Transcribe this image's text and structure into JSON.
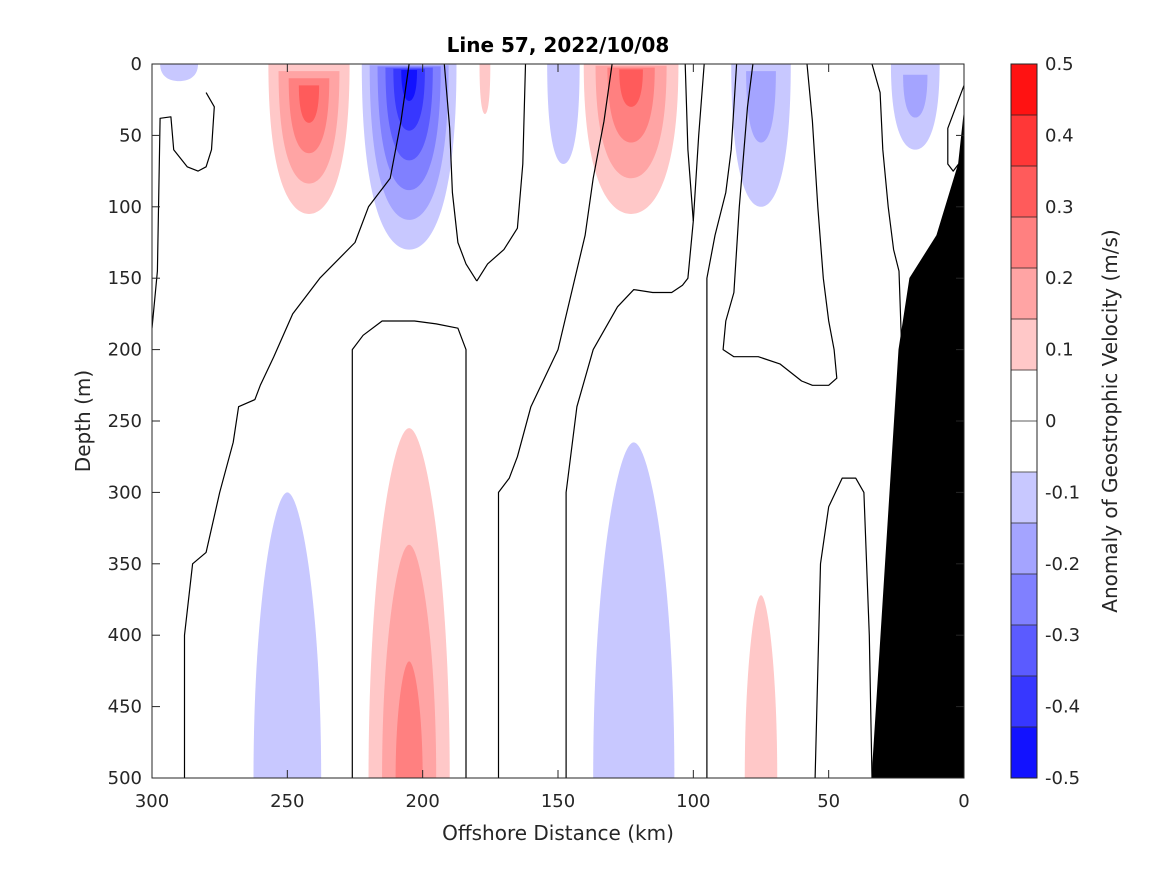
{
  "chart_data": {
    "type": "contour",
    "title": "Line 57, 2022/10/08",
    "xlabel": "Offshore Distance (km)",
    "ylabel": "Depth (m)",
    "colorbar_label": "Anomaly of Geostrophic Velocity (m/s)",
    "xlim": [
      300,
      0
    ],
    "ylim": [
      0,
      500
    ],
    "x_reversed": true,
    "y_reversed": true,
    "x_ticks": [
      300,
      250,
      200,
      150,
      100,
      50,
      0
    ],
    "y_ticks": [
      0,
      50,
      100,
      150,
      200,
      250,
      300,
      350,
      400,
      450,
      500
    ],
    "colorbar_ticks": [
      0.5,
      0.4,
      0.3,
      0.2,
      0.1,
      0,
      -0.1,
      -0.2,
      -0.3,
      -0.4,
      -0.5
    ],
    "colorbar_tick_labels": [
      "0.5",
      "0.4",
      "0.3",
      "0.2",
      "0.1",
      "0",
      "-0.1",
      "-0.2",
      "-0.3",
      "-0.4",
      "-0.5"
    ],
    "colorbar_range": [
      -0.5,
      0.5
    ],
    "colorbar_levels": 14,
    "positive_color": "#ff0000",
    "negative_color": "#0000ff",
    "zero_color": "#ffffff",
    "topography_color": "#000000",
    "topography": [
      [
        34,
        500
      ],
      [
        24,
        200
      ],
      [
        20,
        150
      ],
      [
        10,
        120
      ],
      [
        2,
        70
      ],
      [
        0,
        35
      ],
      [
        0,
        500
      ]
    ],
    "features": [
      {
        "sign": -1,
        "x": 205,
        "top": 0,
        "bottom": 130,
        "width": 35,
        "peak": 0.4,
        "core_depth": 5
      },
      {
        "sign": 1,
        "x": 242,
        "top": 0,
        "bottom": 105,
        "width": 30,
        "peak": 0.25,
        "core_depth": 20
      },
      {
        "sign": 1,
        "x": 123,
        "top": 0,
        "bottom": 105,
        "width": 35,
        "peak": 0.3,
        "core_depth": 5
      },
      {
        "sign": -1,
        "x": 148,
        "top": 0,
        "bottom": 70,
        "width": 12,
        "peak": 0.1,
        "core_depth": 10
      },
      {
        "sign": -1,
        "x": 75,
        "top": 0,
        "bottom": 100,
        "width": 22,
        "peak": 0.15,
        "core_depth": 10
      },
      {
        "sign": -1,
        "x": 18,
        "top": 0,
        "bottom": 60,
        "width": 18,
        "peak": 0.12,
        "core_depth": 15
      },
      {
        "sign": -1,
        "x": 290,
        "top": 0,
        "bottom": 12,
        "width": 14,
        "peak": 0.1,
        "core_depth": 5
      },
      {
        "sign": 1,
        "x": 177,
        "top": 0,
        "bottom": 35,
        "width": 4,
        "peak": 0.06,
        "core_depth": 5
      },
      {
        "sign": 1,
        "x": 205,
        "top": 255,
        "bottom": 500,
        "width": 30,
        "peak": 0.2,
        "core_depth": 500
      },
      {
        "sign": -1,
        "x": 250,
        "top": 300,
        "bottom": 500,
        "width": 25,
        "peak": 0.08,
        "core_depth": 500
      },
      {
        "sign": -1,
        "x": 122,
        "top": 265,
        "bottom": 500,
        "width": 30,
        "peak": 0.08,
        "core_depth": 500
      },
      {
        "sign": 1,
        "x": 75,
        "top": 372,
        "bottom": 500,
        "width": 12,
        "peak": 0.08,
        "core_depth": 500
      }
    ],
    "zero_contours": [
      [
        [
          300,
          185
        ],
        [
          298,
          145
        ],
        [
          297,
          38
        ],
        [
          293,
          37
        ],
        [
          292,
          60
        ],
        [
          287,
          72
        ],
        [
          283,
          75
        ],
        [
          280,
          72
        ],
        [
          278,
          60
        ],
        [
          277,
          30
        ],
        [
          280,
          20
        ]
      ],
      [
        [
          288,
          500
        ],
        [
          288,
          400
        ],
        [
          285,
          350
        ],
        [
          280,
          342
        ],
        [
          275,
          300
        ],
        [
          270,
          265
        ],
        [
          268,
          240
        ],
        [
          262,
          235
        ],
        [
          260,
          225
        ],
        [
          255,
          205
        ],
        [
          248,
          175
        ],
        [
          238,
          150
        ],
        [
          225,
          125
        ],
        [
          220,
          100
        ],
        [
          212,
          80
        ],
        [
          208,
          40
        ],
        [
          205,
          0
        ]
      ],
      [
        [
          226,
          500
        ],
        [
          226,
          200
        ],
        [
          222,
          190
        ],
        [
          215,
          180
        ],
        [
          203,
          180
        ],
        [
          195,
          182
        ],
        [
          187,
          185
        ],
        [
          184,
          200
        ],
        [
          184,
          500
        ]
      ],
      [
        [
          172,
          500
        ],
        [
          172,
          300
        ],
        [
          168,
          290
        ],
        [
          165,
          275
        ],
        [
          160,
          240
        ],
        [
          150,
          200
        ],
        [
          140,
          120
        ],
        [
          137,
          80
        ],
        [
          133,
          40
        ],
        [
          130,
          0
        ]
      ],
      [
        [
          180,
          152
        ],
        [
          184,
          140
        ],
        [
          187,
          125
        ],
        [
          189,
          90
        ],
        [
          190,
          45
        ],
        [
          192,
          0
        ]
      ],
      [
        [
          180,
          152
        ],
        [
          176,
          140
        ],
        [
          170,
          130
        ],
        [
          165,
          115
        ],
        [
          163,
          70
        ],
        [
          162,
          0
        ]
      ],
      [
        [
          147,
          500
        ],
        [
          147,
          300
        ],
        [
          143,
          240
        ],
        [
          137,
          200
        ],
        [
          128,
          170
        ],
        [
          122,
          158
        ],
        [
          115,
          160
        ],
        [
          108,
          160
        ],
        [
          104,
          155
        ],
        [
          102,
          150
        ],
        [
          100,
          110
        ],
        [
          98,
          50
        ],
        [
          96,
          0
        ]
      ],
      [
        [
          95,
          500
        ],
        [
          95,
          150
        ],
        [
          92,
          120
        ],
        [
          88,
          90
        ],
        [
          86,
          60
        ],
        [
          84,
          0
        ]
      ],
      [
        [
          55,
          500
        ],
        [
          53,
          350
        ],
        [
          50,
          310
        ],
        [
          45,
          290
        ],
        [
          40,
          290
        ],
        [
          37,
          300
        ],
        [
          35,
          400
        ],
        [
          34,
          500
        ]
      ],
      [
        [
          58,
          0
        ],
        [
          56,
          40
        ],
        [
          54,
          100
        ],
        [
          52,
          150
        ],
        [
          50,
          180
        ],
        [
          48,
          200
        ],
        [
          47,
          220
        ],
        [
          50,
          225
        ],
        [
          56,
          225
        ],
        [
          60,
          222
        ],
        [
          68,
          210
        ],
        [
          76,
          205
        ],
        [
          85,
          205
        ],
        [
          89,
          200
        ],
        [
          88,
          180
        ],
        [
          85,
          160
        ],
        [
          83,
          100
        ],
        [
          80,
          30
        ],
        [
          78,
          0
        ]
      ],
      [
        [
          0,
          15
        ],
        [
          3,
          30
        ],
        [
          6,
          45
        ],
        [
          6,
          70
        ],
        [
          4,
          75
        ],
        [
          2,
          70
        ]
      ],
      [
        [
          34,
          0
        ],
        [
          31,
          20
        ],
        [
          30,
          60
        ],
        [
          28,
          100
        ],
        [
          26,
          130
        ],
        [
          24,
          145
        ],
        [
          23,
          200
        ]
      ],
      [
        [
          100,
          110
        ],
        [
          102,
          60
        ],
        [
          103,
          0
        ]
      ]
    ]
  }
}
